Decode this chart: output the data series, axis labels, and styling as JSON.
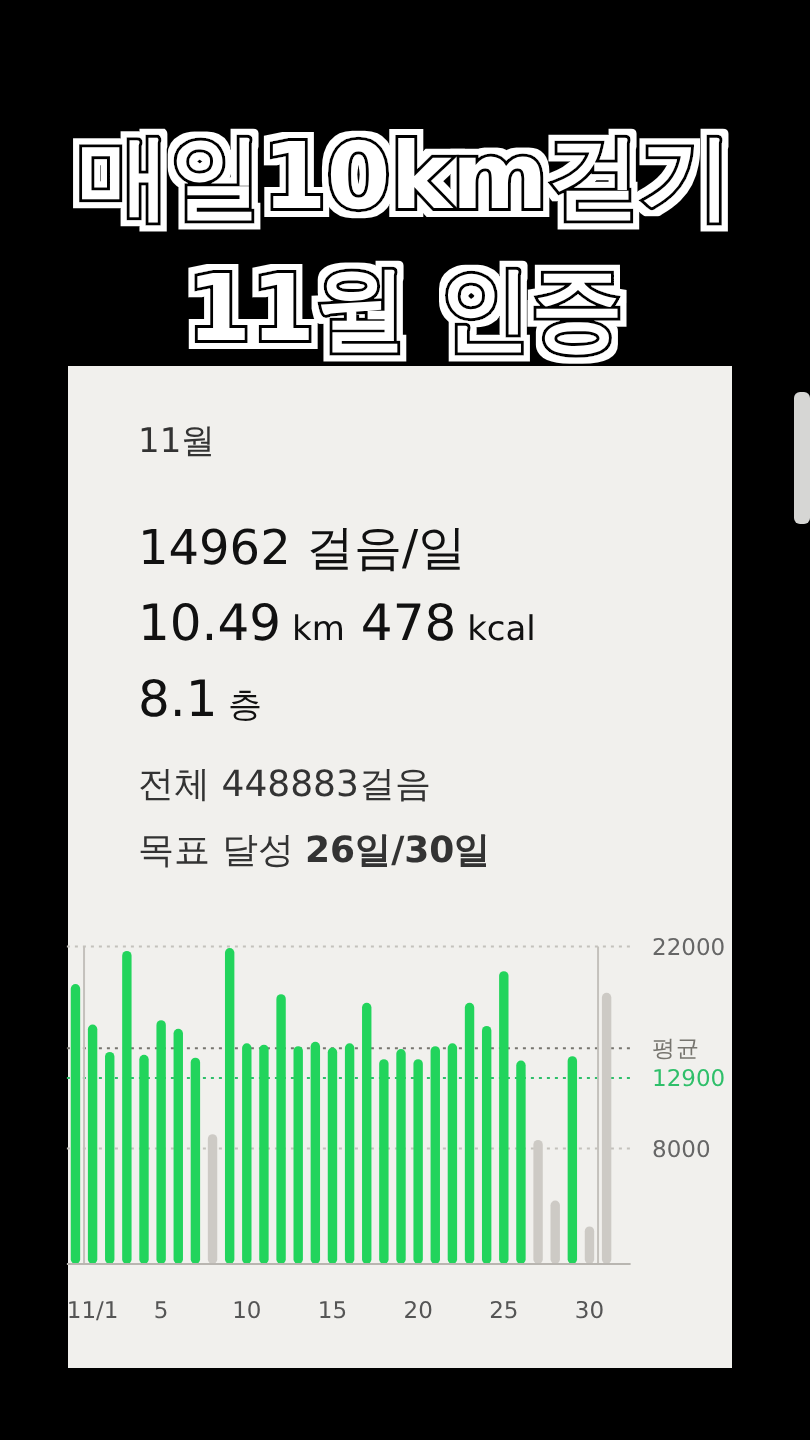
{
  "chart_data": {
    "type": "bar",
    "title": "매일10km걷기\n11월 인증",
    "x": [
      0,
      1,
      2,
      3,
      4,
      5,
      6,
      7,
      8,
      9,
      10,
      11,
      12,
      13,
      14,
      15,
      16,
      17,
      18,
      19,
      20,
      21,
      22,
      23,
      24,
      25,
      26,
      27,
      28,
      29,
      30,
      31
    ],
    "values": [
      19400,
      16600,
      14700,
      21700,
      14500,
      16900,
      16300,
      14300,
      9000,
      21900,
      15300,
      15200,
      18700,
      15100,
      15400,
      15000,
      15300,
      18100,
      14200,
      14900,
      14200,
      15100,
      15300,
      18100,
      16500,
      20300,
      14100,
      8600,
      4400,
      14400,
      2600,
      18800
    ],
    "colors": [
      "#22d45c",
      "#22d45c",
      "#22d45c",
      "#22d45c",
      "#22d45c",
      "#22d45c",
      "#22d45c",
      "#22d45c",
      "#cdcac5",
      "#22d45c",
      "#22d45c",
      "#22d45c",
      "#22d45c",
      "#22d45c",
      "#22d45c",
      "#22d45c",
      "#22d45c",
      "#22d45c",
      "#22d45c",
      "#22d45c",
      "#22d45c",
      "#22d45c",
      "#22d45c",
      "#22d45c",
      "#22d45c",
      "#22d45c",
      "#22d45c",
      "#cdcac5",
      "#cdcac5",
      "#22d45c",
      "#cdcac5",
      "#cdcac5"
    ],
    "xlim": [
      -0.5,
      32.4
    ],
    "xticks": [
      {
        "value": 1,
        "label": "11/1"
      },
      5,
      10,
      15,
      20,
      25,
      30
    ],
    "ylim": [
      0,
      22000
    ],
    "yticks": [
      8000,
      22000
    ],
    "grid": "y",
    "ref_lines": [
      {
        "axis": "y",
        "value": 14962,
        "label": "평균",
        "color": "#77756f",
        "line_style": "dotted"
      },
      {
        "axis": "y",
        "value": 12900,
        "label": "12900",
        "color": "#2fbf6a",
        "line_style": "dotted"
      },
      {
        "axis": "x",
        "value": 0.5,
        "color": "#c4c1bc",
        "line_style": "solid"
      },
      {
        "axis": "x",
        "value": 30.5,
        "color": "#c4c1bc",
        "line_style": "solid"
      }
    ],
    "annotations": [
      "11월",
      "14962 걸음/일",
      "10.49 km 478 kcal",
      "8.1 층",
      "전체 448883걸음",
      "목표 달성 26일/30일"
    ]
  }
}
